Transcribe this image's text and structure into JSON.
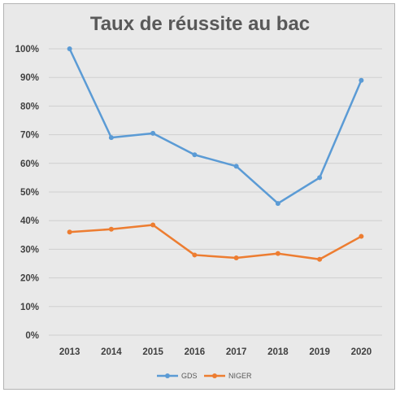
{
  "chart_data": {
    "type": "line",
    "title": "Taux de réussite au bac",
    "xlabel": "",
    "ylabel": "",
    "categories": [
      "2013",
      "2014",
      "2015",
      "2016",
      "2017",
      "2018",
      "2019",
      "2020"
    ],
    "ylim": [
      0,
      100
    ],
    "y_ticks": [
      "0%",
      "10%",
      "20%",
      "30%",
      "40%",
      "50%",
      "60%",
      "70%",
      "80%",
      "90%",
      "100%"
    ],
    "grid": true,
    "legend_position": "bottom",
    "series": [
      {
        "name": "GDS",
        "color": "#5b9bd5",
        "values": [
          100,
          69,
          70.5,
          63,
          59,
          46,
          55,
          89
        ]
      },
      {
        "name": "NIGER",
        "color": "#ed7d31",
        "values": [
          36,
          37,
          38.5,
          28,
          27,
          28.5,
          26.5,
          34.5
        ]
      }
    ]
  }
}
